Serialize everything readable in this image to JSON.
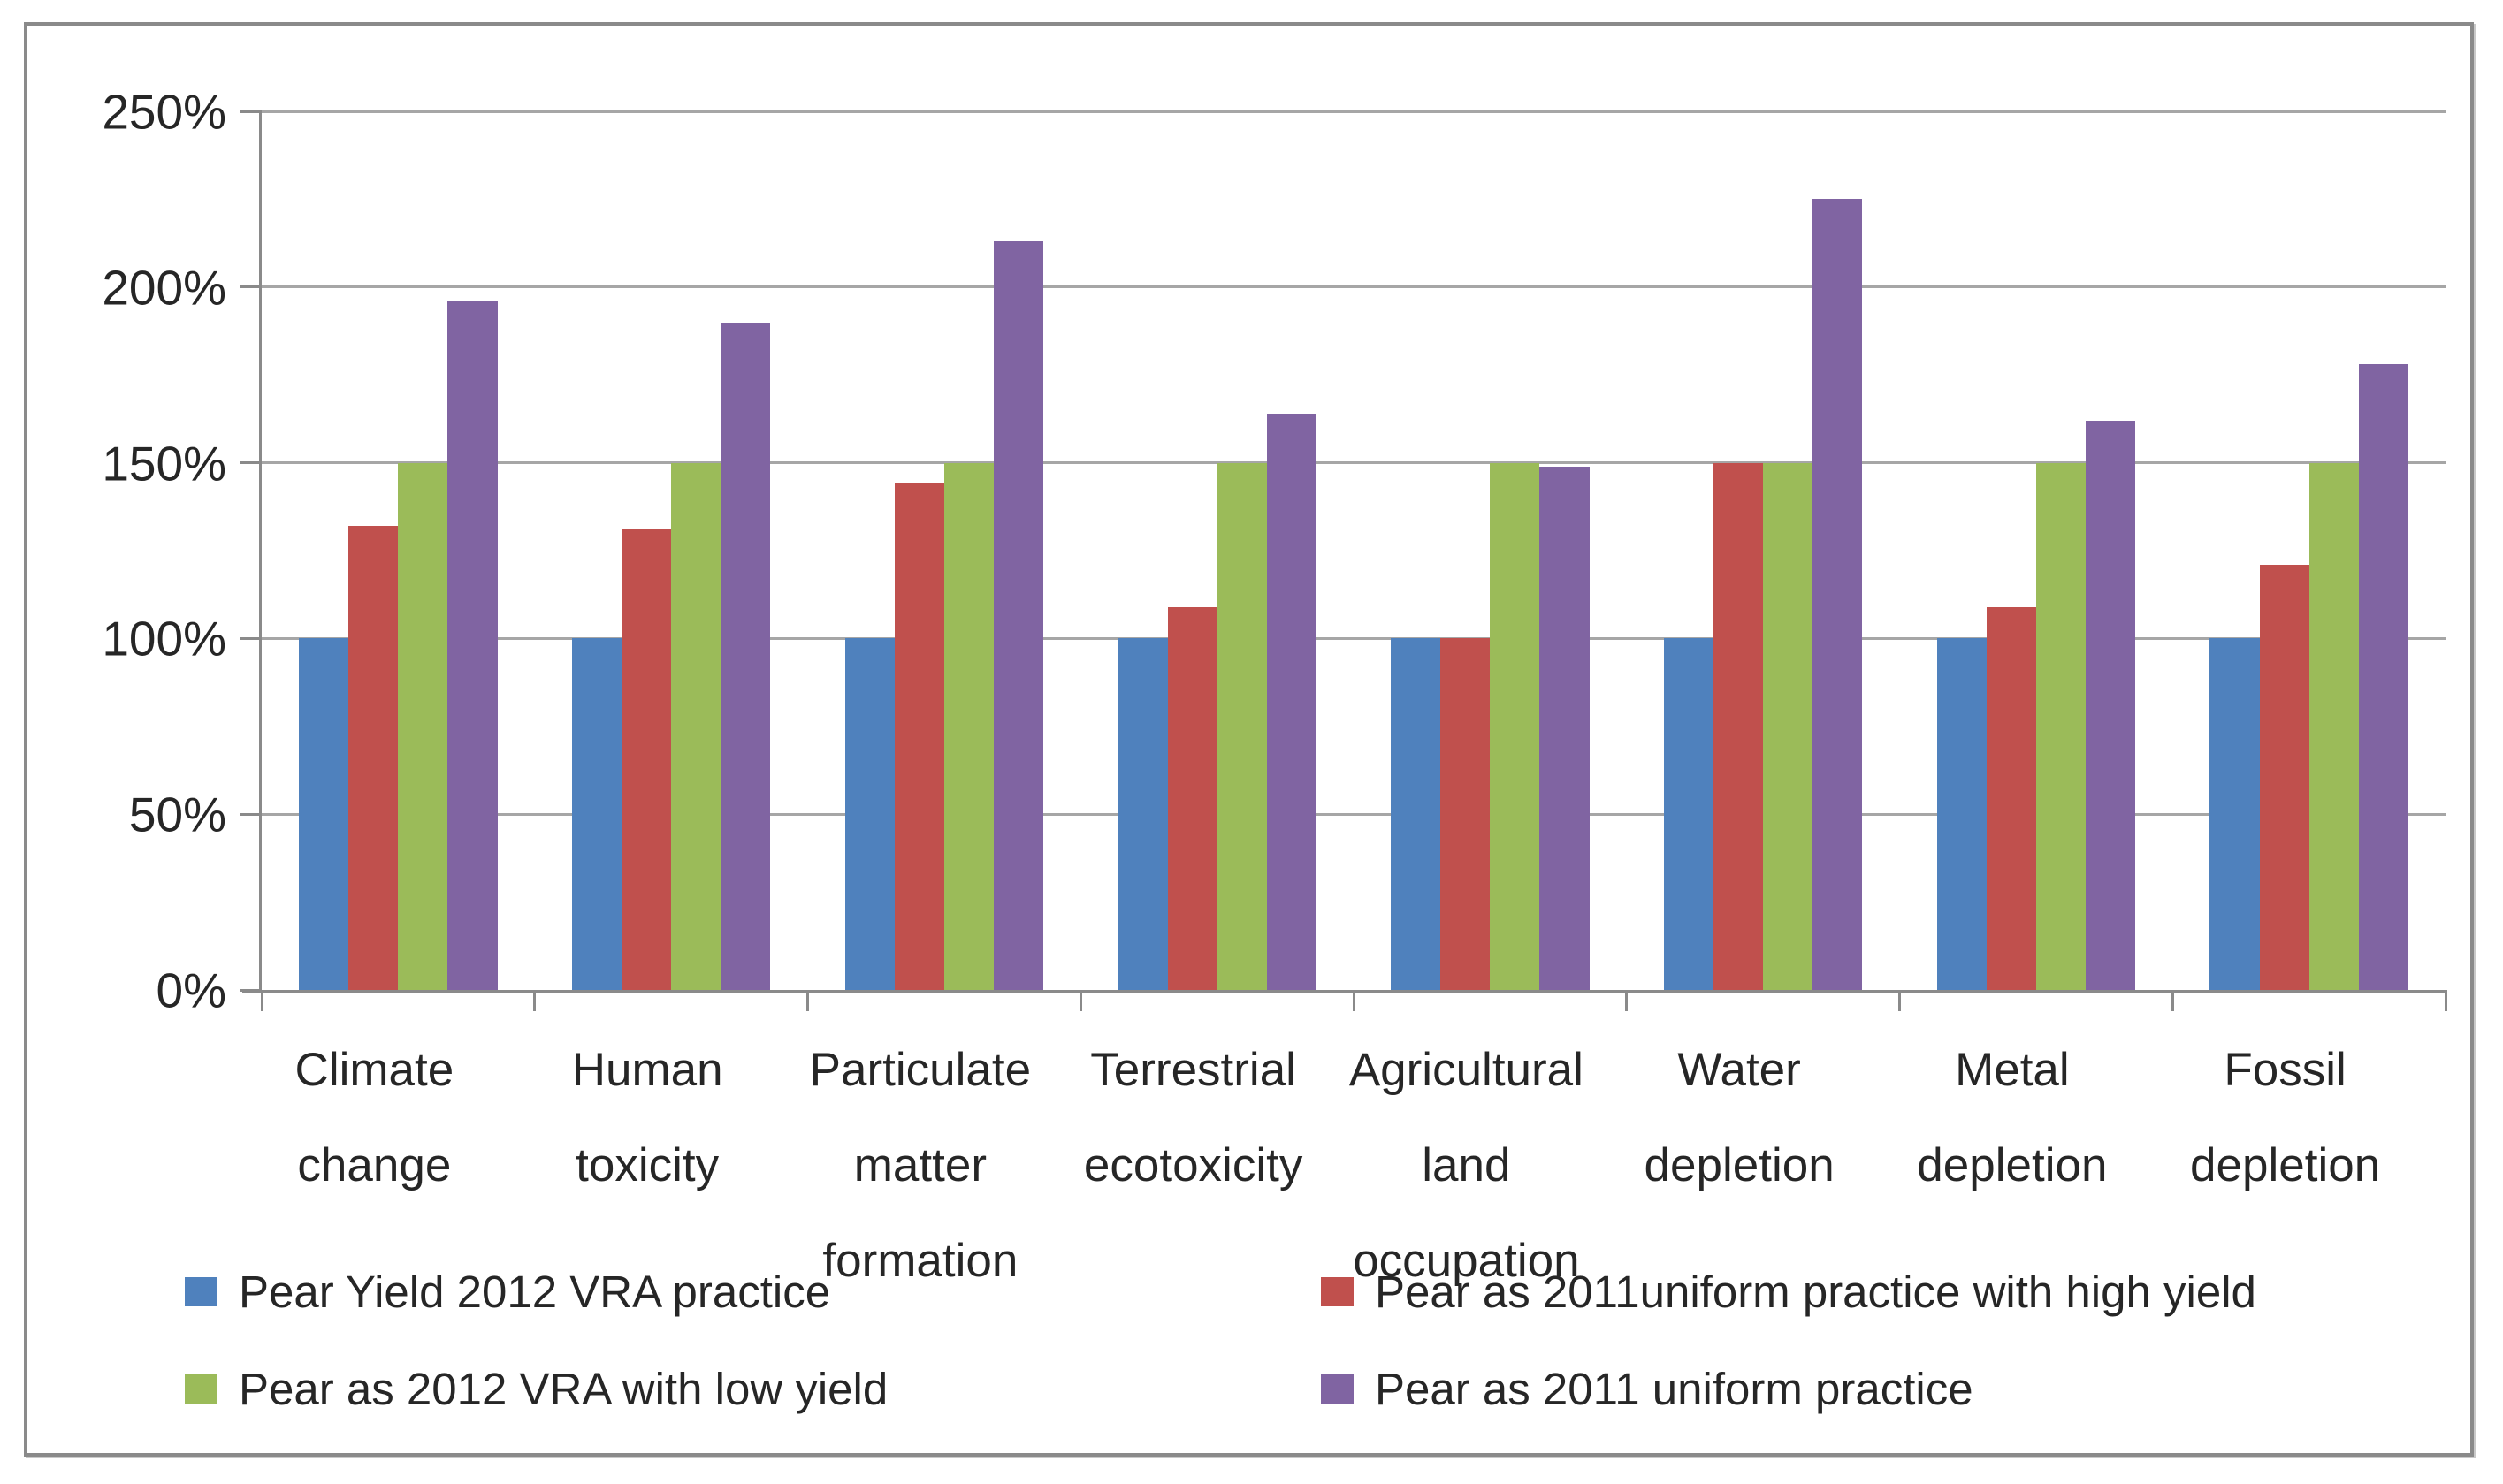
{
  "chart_data": {
    "type": "bar",
    "title": "",
    "xlabel": "",
    "ylabel": "",
    "categories": [
      "Climate change",
      "Human toxicity",
      "Particulate matter formation",
      "Terrestrial ecotoxicity",
      "Agricultural land occupation",
      "Water depletion",
      "Metal depletion",
      "Fossil depletion"
    ],
    "series": [
      {
        "name": "Pear Yield 2012 VRA practice",
        "color": "#4F81BD",
        "values": [
          100,
          100,
          100,
          100,
          100,
          100,
          100,
          100
        ]
      },
      {
        "name": "Pear as 2011uniform practice with high yield",
        "color": "#C0504D",
        "values": [
          132,
          131,
          144,
          109,
          100,
          150,
          109,
          121
        ]
      },
      {
        "name": "Pear as 2012 VRA with low yield",
        "color": "#9BBB59",
        "values": [
          150,
          150,
          150,
          150,
          150,
          150,
          150,
          150
        ]
      },
      {
        "name": "Pear as 2011 uniform practice",
        "color": "#8064A2",
        "values": [
          196,
          190,
          213,
          164,
          149,
          225,
          162,
          178
        ]
      }
    ],
    "y_axis": {
      "min": 0,
      "max": 250,
      "ticks": [
        {
          "value": 0,
          "label": "0%"
        },
        {
          "value": 50,
          "label": "50%"
        },
        {
          "value": 100,
          "label": "100%"
        },
        {
          "value": 150,
          "label": "150%"
        },
        {
          "value": 200,
          "label": "200%"
        },
        {
          "value": 250,
          "label": "250%"
        }
      ]
    },
    "grid": true,
    "legend_position": "bottom",
    "legend_columns": 2
  },
  "style": {
    "gridline_color": "#A6A6A6",
    "axis_color": "#8A8A8A",
    "border_color": "#8A8A8A",
    "text_color": "#262626",
    "background_color": "#FFFFFF"
  }
}
